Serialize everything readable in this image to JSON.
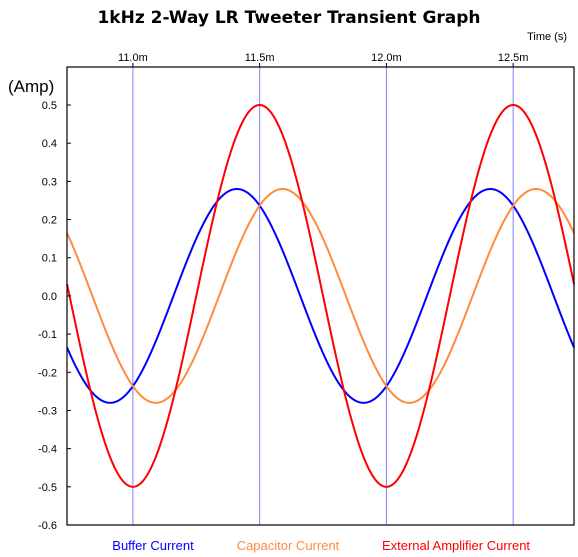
{
  "chart_data": {
    "type": "line",
    "title": "1kHz 2-Way LR Tweeter Transient Graph",
    "xlabel": "Time   (s)",
    "ylabel": "(Amp)",
    "xlim": [
      10.74,
      12.74
    ],
    "ylim": [
      -0.6,
      0.55
    ],
    "x_ticks": [
      {
        "value": 11.0,
        "label": "11.0m"
      },
      {
        "value": 11.5,
        "label": "11.5m"
      },
      {
        "value": 12.0,
        "label": "12.0m"
      },
      {
        "value": 12.5,
        "label": "12.5m"
      }
    ],
    "y_ticks": [
      {
        "value": 0.5,
        "label": "0.5"
      },
      {
        "value": 0.4,
        "label": "0.4"
      },
      {
        "value": 0.3,
        "label": "0.3"
      },
      {
        "value": 0.2,
        "label": "0.2"
      },
      {
        "value": 0.1,
        "label": "0.1"
      },
      {
        "value": 0.0,
        "label": "0.0"
      },
      {
        "value": -0.1,
        "label": "-0.1"
      },
      {
        "value": -0.2,
        "label": "-0.2"
      },
      {
        "value": -0.3,
        "label": "-0.3"
      },
      {
        "value": -0.4,
        "label": "-0.4"
      },
      {
        "value": -0.5,
        "label": "-0.5"
      },
      {
        "value": -0.6,
        "label": "-0.6"
      }
    ],
    "grid": "vertical",
    "legend_position": "bottom",
    "series": [
      {
        "name": "Buffer Current",
        "color": "#0000ff",
        "amplitude": 0.28,
        "peak_times": [
          11.41,
          12.41
        ],
        "period": 1.0
      },
      {
        "name": "Capacitor Current",
        "color": "#ff8c3c",
        "amplitude": 0.28,
        "peak_times": [
          11.59,
          12.59
        ],
        "period": 1.0
      },
      {
        "name": "External Amplifier Current",
        "color": "#ff0000",
        "amplitude": 0.5,
        "peak_times": [
          11.5,
          12.5
        ],
        "period": 1.0
      }
    ]
  }
}
